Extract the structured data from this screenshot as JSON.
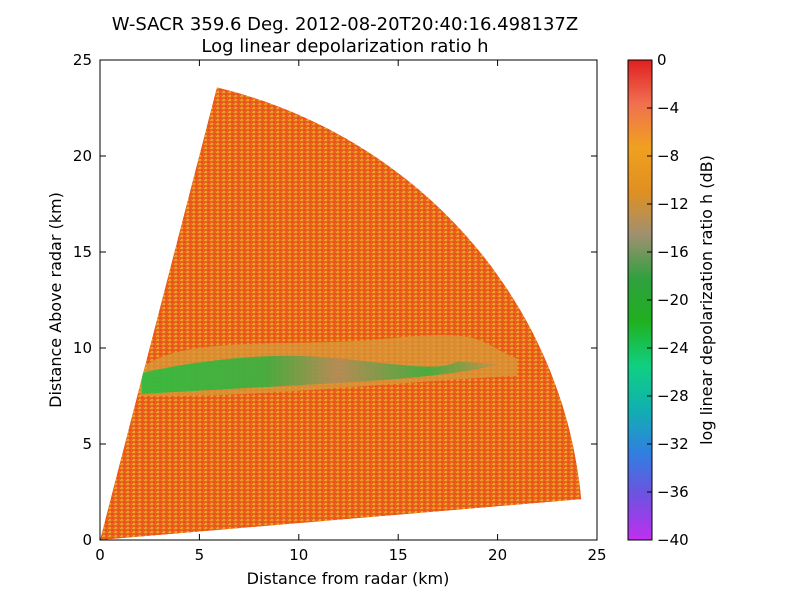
{
  "chart_data": {
    "type": "heatmap",
    "title": "W-SACR 359.6 Deg. 2012-08-20T20:40:16.498137Z",
    "subtitle": "Log linear depolarization ratio h",
    "xlabel": "Distance from radar (km)",
    "ylabel": "Distance Above radar  (km)",
    "xlim": [
      0,
      25
    ],
    "ylim": [
      0,
      25
    ],
    "x_ticks": [
      "0",
      "5",
      "10",
      "15",
      "20",
      "25"
    ],
    "y_ticks": [
      "0",
      "5",
      "10",
      "15",
      "20",
      "25"
    ],
    "sector": {
      "max_range_km": 24.3,
      "min_elevation_deg": 5,
      "max_elevation_deg": 76
    },
    "background_value_db": -6,
    "features": [
      {
        "x_range_km": [
          2,
          21
        ],
        "y_range_km": [
          7.5,
          10.5
        ],
        "value_db": -22
      }
    ],
    "colorbar": {
      "label": "log linear depolarization ratio h (dB)",
      "range": [
        -40,
        0
      ],
      "ticks": [
        "0",
        "−4",
        "−8",
        "−12",
        "−16",
        "−20",
        "−24",
        "−28",
        "−32",
        "−36",
        "−40"
      ],
      "colors": [
        "#c030f0",
        "#7050e0",
        "#3080e0",
        "#10b0b0",
        "#10d080",
        "#20b020",
        "#30a040",
        "#a09070",
        "#e09020",
        "#f0a020",
        "#f07050",
        "#e02020"
      ]
    },
    "grid": false
  }
}
